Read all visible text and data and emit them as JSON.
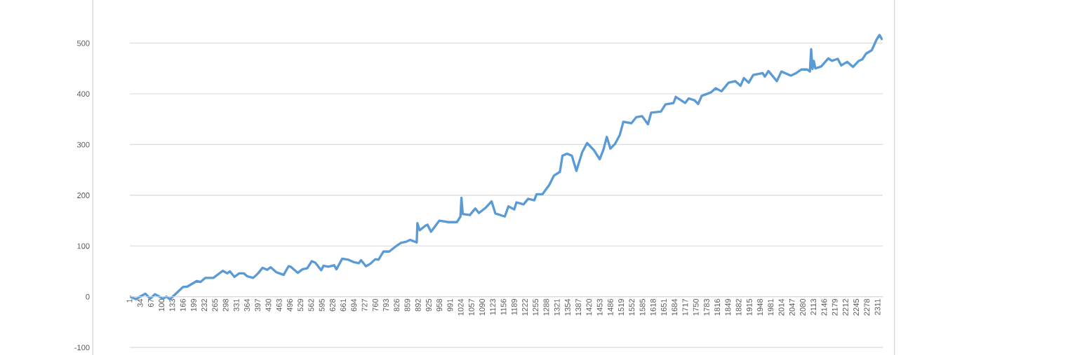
{
  "chart_data": {
    "type": "line",
    "x": [
      1,
      19,
      34,
      48,
      63,
      78,
      102,
      113,
      124,
      149,
      164,
      178,
      207,
      218,
      233,
      258,
      287,
      301,
      309,
      323,
      338,
      352,
      363,
      381,
      396,
      410,
      424,
      435,
      453,
      475,
      490,
      497,
      519,
      533,
      548,
      562,
      573,
      591,
      598,
      613,
      631,
      638,
      656,
      674,
      692,
      707,
      714,
      729,
      743,
      758,
      768,
      783,
      801,
      823,
      837,
      852,
      866,
      886,
      888,
      895,
      913,
      919,
      930,
      956,
      984,
      1010,
      1021,
      1024,
      1028,
      1050,
      1067,
      1078,
      1100,
      1117,
      1129,
      1158,
      1169,
      1187,
      1194,
      1216,
      1230,
      1249,
      1256,
      1274,
      1295,
      1310,
      1328,
      1336,
      1350,
      1365,
      1379,
      1397,
      1412,
      1433,
      1451,
      1462,
      1473,
      1484,
      1498,
      1513,
      1524,
      1549,
      1564,
      1582,
      1600,
      1610,
      1640,
      1654,
      1679,
      1686,
      1715,
      1726,
      1744,
      1755,
      1766,
      1795,
      1809,
      1827,
      1849,
      1870,
      1886,
      1896,
      1911,
      1925,
      1954,
      1961,
      1972,
      1998,
      2012,
      2041,
      2055,
      2074,
      2092,
      2100,
      2104,
      2108,
      2112,
      2117,
      2135,
      2157,
      2168,
      2186,
      2197,
      2215,
      2233,
      2251,
      2262,
      2273,
      2291,
      2306,
      2315,
      2322
    ],
    "series": [
      {
        "color": "#5b9bd5",
        "values": [
          0,
          -5,
          1,
          6,
          -4,
          5,
          -4,
          0,
          -5,
          10,
          19,
          20,
          31,
          29,
          37,
          37,
          51,
          46,
          50,
          39,
          46,
          46,
          40,
          37,
          46,
          57,
          53,
          58,
          48,
          43,
          60,
          59,
          47,
          54,
          56,
          70,
          67,
          52,
          61,
          59,
          62,
          54,
          75,
          73,
          68,
          66,
          72,
          60,
          65,
          74,
          73,
          89,
          89,
          100,
          106,
          108,
          112,
          107,
          145,
          131,
          140,
          142,
          128,
          150,
          147,
          147,
          158,
          195,
          163,
          161,
          174,
          165,
          176,
          188,
          164,
          158,
          178,
          172,
          186,
          182,
          193,
          190,
          202,
          202,
          220,
          239,
          246,
          278,
          282,
          278,
          248,
          285,
          303,
          289,
          271,
          289,
          315,
          292,
          301,
          319,
          345,
          342,
          354,
          356,
          340,
          363,
          365,
          379,
          382,
          394,
          382,
          391,
          387,
          380,
          396,
          403,
          411,
          405,
          422,
          425,
          416,
          431,
          422,
          437,
          441,
          434,
          445,
          425,
          444,
          436,
          440,
          448,
          448,
          444,
          488,
          449,
          465,
          450,
          454,
          470,
          465,
          469,
          456,
          463,
          453,
          465,
          468,
          479,
          486,
          507,
          516,
          508
        ]
      }
    ],
    "xlim": [
      0,
      2325
    ],
    "xticks": [
      1,
      34,
      67,
      100,
      133,
      166,
      199,
      232,
      265,
      298,
      331,
      364,
      397,
      430,
      463,
      496,
      529,
      562,
      595,
      628,
      661,
      694,
      727,
      760,
      793,
      826,
      859,
      892,
      925,
      958,
      991,
      1024,
      1057,
      1090,
      1123,
      1156,
      1189,
      1222,
      1255,
      1288,
      1321,
      1354,
      1387,
      1420,
      1453,
      1486,
      1519,
      1552,
      1585,
      1618,
      1651,
      1684,
      1717,
      1750,
      1783,
      1816,
      1849,
      1882,
      1915,
      1948,
      1981,
      2014,
      2047,
      2080,
      2113,
      2146,
      2179,
      2212,
      2245,
      2278,
      2311
    ],
    "ylim": [
      -115,
      585
    ],
    "yticks": [
      -100,
      0,
      100,
      200,
      300,
      400,
      500
    ],
    "grid": "y",
    "legend": false,
    "marker": "none",
    "line_style": "solid"
  }
}
